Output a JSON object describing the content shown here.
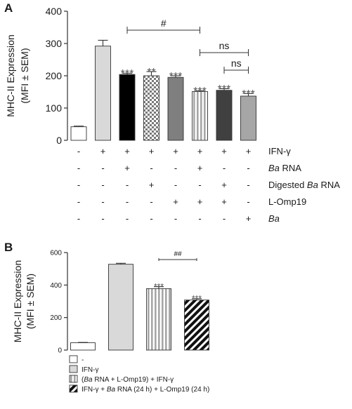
{
  "chart_data": [
    {
      "type": "bar",
      "panel": "A",
      "ylabel_lines": [
        "MHC-II Expression",
        "(MFI ± SEM)"
      ],
      "ylim": [
        0,
        400
      ],
      "yticks": [
        "0",
        "100",
        "200",
        "300",
        "400"
      ],
      "grid": false,
      "bars": [
        {
          "value": 42,
          "error": 2,
          "fill": "#ffffff",
          "sig": ""
        },
        {
          "value": 292,
          "error": 18,
          "fill": "#d9d9d9",
          "sig": ""
        },
        {
          "value": 204,
          "error": 4,
          "fill": "#000000",
          "sig": "***"
        },
        {
          "value": 200,
          "error": 13,
          "fill": "checker",
          "sig": "**"
        },
        {
          "value": 195,
          "error": 5,
          "fill": "#7f7f7f",
          "sig": "***"
        },
        {
          "value": 151,
          "error": 3,
          "fill": "vstripe",
          "sig": "***"
        },
        {
          "value": 155,
          "error": 5,
          "fill": "#404040",
          "sig": "***"
        },
        {
          "value": 137,
          "error": 8,
          "fill": "#a6a6a6",
          "sig": "***"
        }
      ],
      "brackets": [
        {
          "from": 2,
          "to": 5,
          "label": "#",
          "level": 1
        },
        {
          "from": 5,
          "to": 7,
          "label": "ns",
          "level": 2
        },
        {
          "from": 6,
          "to": 7,
          "label": "ns",
          "level": 3
        }
      ],
      "conditions": [
        {
          "name": "IFN-γ",
          "name_parts": [
            {
              "t": "IFN-γ",
              "i": false
            }
          ],
          "values": [
            "-",
            "+",
            "+",
            "+",
            "+",
            "+",
            "+",
            "+"
          ]
        },
        {
          "name": "Ba RNA",
          "name_parts": [
            {
              "t": "Ba",
              "i": true
            },
            {
              "t": " RNA",
              "i": false
            }
          ],
          "values": [
            "-",
            "-",
            "+",
            "-",
            "-",
            "+",
            "-",
            "-"
          ]
        },
        {
          "name": "Digested Ba RNA",
          "name_parts": [
            {
              "t": "Digested ",
              "i": false
            },
            {
              "t": "Ba",
              "i": true
            },
            {
              "t": " RNA",
              "i": false
            }
          ],
          "values": [
            "-",
            "-",
            "-",
            "+",
            "-",
            "-",
            "+",
            "-"
          ]
        },
        {
          "name": "L-Omp19",
          "name_parts": [
            {
              "t": "L-Omp19",
              "i": false
            }
          ],
          "values": [
            "-",
            "-",
            "-",
            "-",
            "+",
            "+",
            "+",
            "-"
          ]
        },
        {
          "name": "Ba",
          "name_parts": [
            {
              "t": "Ba",
              "i": true
            }
          ],
          "values": [
            "-",
            "-",
            "-",
            "-",
            "-",
            "-",
            "-",
            "+"
          ]
        }
      ]
    },
    {
      "type": "bar",
      "panel": "B",
      "ylabel_lines": [
        "MHC-II Expression",
        "(MFI ± SEM)"
      ],
      "ylim": [
        0,
        600
      ],
      "yticks": [
        "0",
        "200",
        "400",
        "600"
      ],
      "grid": false,
      "legend_position": "bottom",
      "bars": [
        {
          "value": 45,
          "error": 2,
          "fill": "#ffffff",
          "sig": ""
        },
        {
          "value": 528,
          "error": 6,
          "fill": "#d9d9d9",
          "sig": ""
        },
        {
          "value": 378,
          "error": 12,
          "fill": "vstripe",
          "sig": "***"
        },
        {
          "value": 308,
          "error": 8,
          "fill": "diag",
          "sig": "***"
        }
      ],
      "brackets": [
        {
          "from": 2,
          "to": 3,
          "label": "##",
          "level": 1
        }
      ],
      "legend": [
        {
          "label": "-",
          "label_parts": [
            {
              "t": "-",
              "i": false
            }
          ],
          "fill": "#ffffff"
        },
        {
          "label": "IFN-γ",
          "label_parts": [
            {
              "t": "IFN-γ",
              "i": false
            }
          ],
          "fill": "#d9d9d9"
        },
        {
          "label": "(Ba RNA + L-Omp19) + IFN-γ",
          "label_parts": [
            {
              "t": "(",
              "i": false
            },
            {
              "t": "Ba",
              "i": true
            },
            {
              "t": " RNA + L-Omp19) + IFN-γ",
              "i": false
            }
          ],
          "fill": "vstripe"
        },
        {
          "label": "IFN-γ + Ba RNA (24 h) + L-Omp19 (24 h)",
          "label_parts": [
            {
              "t": "IFN-γ + ",
              "i": false
            },
            {
              "t": "Ba",
              "i": true
            },
            {
              "t": " RNA (24 h) + L-Omp19 (24 h)",
              "i": false
            }
          ],
          "fill": "diag"
        }
      ]
    }
  ]
}
